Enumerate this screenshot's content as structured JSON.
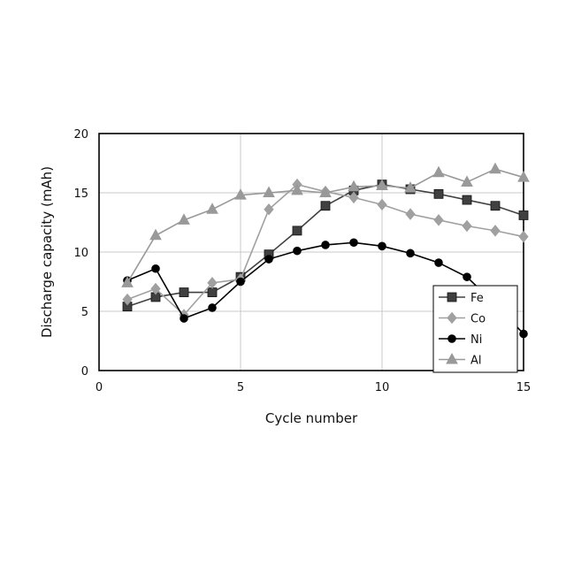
{
  "chart_data": {
    "type": "line",
    "xlabel": "Cycle number",
    "ylabel": "Discharge capacity (mAh)",
    "xlim": [
      0,
      15
    ],
    "ylim": [
      0,
      20
    ],
    "xticks": [
      0,
      5,
      10,
      15
    ],
    "yticks": [
      0,
      5,
      10,
      15,
      20
    ],
    "grid": true,
    "legend_position": "bottom-right",
    "x": [
      1,
      2,
      3,
      4,
      5,
      6,
      7,
      8,
      9,
      10,
      11,
      12,
      13,
      14,
      15
    ],
    "series": [
      {
        "name": "Fe",
        "marker": "square",
        "color": "#404040",
        "values": [
          5.4,
          6.2,
          6.6,
          6.6,
          7.9,
          9.8,
          11.8,
          13.9,
          15.2,
          15.7,
          15.3,
          14.9,
          14.4,
          13.9,
          13.1
        ]
      },
      {
        "name": "Co",
        "marker": "diamond",
        "color": "#a0a0a0",
        "values": [
          6.0,
          6.9,
          4.7,
          7.4,
          7.7,
          13.6,
          15.7,
          15.1,
          14.6,
          14.0,
          13.2,
          12.7,
          12.2,
          11.8,
          11.3
        ]
      },
      {
        "name": "Ni",
        "marker": "circle",
        "color": "#000000",
        "values": [
          7.6,
          8.6,
          4.4,
          5.3,
          7.5,
          9.4,
          10.1,
          10.6,
          10.8,
          10.5,
          9.9,
          9.1,
          7.9,
          5.6,
          3.1
        ]
      },
      {
        "name": "Al",
        "marker": "triangle",
        "color": "#999999",
        "values": [
          7.4,
          11.4,
          12.7,
          13.6,
          14.8,
          15.0,
          15.2,
          15.0,
          15.5,
          15.6,
          15.4,
          16.7,
          15.9,
          17.0,
          16.3
        ]
      }
    ]
  }
}
